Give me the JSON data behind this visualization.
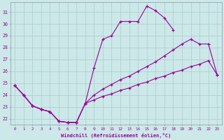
{
  "xlabel": "Windchill (Refroidissement éolien,°C)",
  "bg_color": "#cce8e8",
  "line_color": "#990099",
  "grid_color": "#aacccc",
  "xlim": [
    -0.5,
    23.5
  ],
  "ylim": [
    21.5,
    31.8
  ],
  "yticks": [
    22,
    23,
    24,
    25,
    26,
    27,
    28,
    29,
    30,
    31
  ],
  "xticks": [
    0,
    1,
    2,
    3,
    4,
    5,
    6,
    7,
    8,
    9,
    10,
    11,
    12,
    13,
    14,
    15,
    16,
    17,
    18,
    19,
    20,
    21,
    22,
    23
  ],
  "line1_x": [
    0,
    1,
    2,
    3,
    4,
    5,
    6,
    7,
    8,
    9,
    10,
    11,
    12,
    13,
    14,
    15,
    16,
    17,
    18
  ],
  "line1_y": [
    24.8,
    24.0,
    23.1,
    22.8,
    22.6,
    21.8,
    21.7,
    21.7,
    23.3,
    26.3,
    28.7,
    29.0,
    30.2,
    30.2,
    30.2,
    31.5,
    31.1,
    30.5,
    29.5
  ],
  "line2_x": [
    0,
    1,
    2,
    3,
    4,
    5,
    6,
    7,
    8,
    9,
    10,
    11,
    12,
    13,
    14,
    15,
    16,
    17,
    18,
    19,
    20,
    21,
    22,
    23
  ],
  "line2_y": [
    24.8,
    24.0,
    23.1,
    22.8,
    22.6,
    21.8,
    21.7,
    21.7,
    23.3,
    24.0,
    24.5,
    24.9,
    25.3,
    25.6,
    26.0,
    26.4,
    26.8,
    27.3,
    27.8,
    28.3,
    28.7,
    28.3,
    28.3,
    25.7
  ],
  "line3_x": [
    0,
    1,
    2,
    3,
    4,
    5,
    6,
    7,
    8,
    9,
    10,
    11,
    12,
    13,
    14,
    15,
    16,
    17,
    18,
    19,
    20,
    21,
    22,
    23
  ],
  "line3_y": [
    24.8,
    24.0,
    23.1,
    22.8,
    22.6,
    21.8,
    21.7,
    21.7,
    23.3,
    23.6,
    23.9,
    24.1,
    24.4,
    24.6,
    24.9,
    25.1,
    25.4,
    25.6,
    25.9,
    26.1,
    26.4,
    26.6,
    26.9,
    25.7
  ]
}
